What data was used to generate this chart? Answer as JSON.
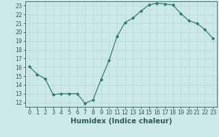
{
  "x": [
    0,
    1,
    2,
    3,
    4,
    5,
    6,
    7,
    8,
    9,
    10,
    11,
    12,
    13,
    14,
    15,
    16,
    17,
    18,
    19,
    20,
    21,
    22,
    23
  ],
  "y": [
    16.1,
    15.2,
    14.7,
    12.9,
    13.0,
    13.0,
    13.0,
    11.9,
    12.3,
    14.6,
    16.8,
    19.5,
    21.1,
    21.6,
    22.4,
    23.1,
    23.3,
    23.2,
    23.1,
    22.1,
    21.3,
    21.0,
    20.3,
    19.3
  ],
  "xlabel": "Humidex (Indice chaleur)",
  "ylim": [
    11.5,
    23.5
  ],
  "xlim": [
    -0.5,
    23.5
  ],
  "yticks": [
    12,
    13,
    14,
    15,
    16,
    17,
    18,
    19,
    20,
    21,
    22,
    23
  ],
  "xticks": [
    0,
    1,
    2,
    3,
    4,
    5,
    6,
    7,
    8,
    9,
    10,
    11,
    12,
    13,
    14,
    15,
    16,
    17,
    18,
    19,
    20,
    21,
    22,
    23
  ],
  "line_color": "#2d7d6e",
  "marker_color": "#2d7d6e",
  "bg_color": "#cde8e8",
  "grid_color": "#b8d4d4",
  "tick_label_fontsize": 5.8,
  "xlabel_fontsize": 7.5,
  "xlabel_color": "#2d5a5a"
}
